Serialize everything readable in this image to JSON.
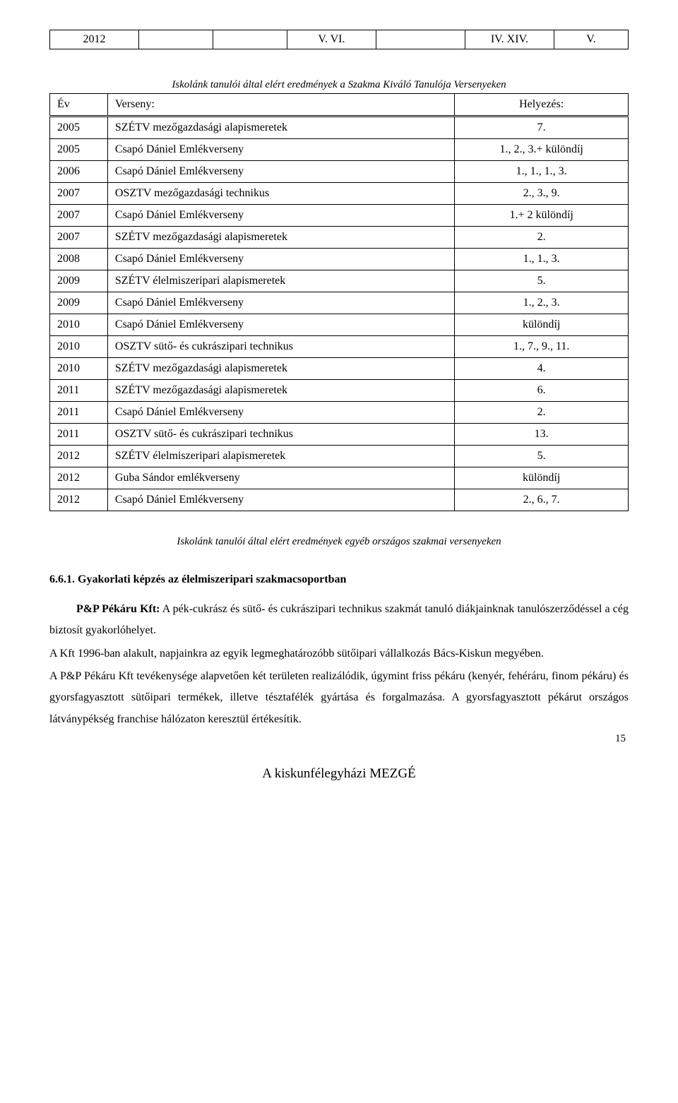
{
  "top_table": {
    "cells": [
      "2012",
      "",
      "",
      "V. VI.",
      "",
      "IV. XIV.",
      "V."
    ]
  },
  "caption1": "Iskolánk tanulói által elért eredmények a Szakma Kiváló Tanulója Versenyeken",
  "main_table": {
    "headers": [
      "Év",
      "Verseny:",
      "Helyezés:"
    ],
    "rows": [
      [
        "2005",
        "SZÉTV mezőgazdasági alapismeretek",
        "7."
      ],
      [
        "2005",
        "Csapó Dániel Emlékverseny",
        "1., 2., 3.+ különdíj"
      ],
      [
        "2006",
        "Csapó Dániel Emlékverseny",
        "1., 1., 1., 3."
      ],
      [
        "2007",
        "OSZTV mezőgazdasági technikus",
        "2., 3., 9."
      ],
      [
        "2007",
        "Csapó Dániel Emlékverseny",
        "1.+ 2 különdíj"
      ],
      [
        "2007",
        "SZÉTV mezőgazdasági alapismeretek",
        "2."
      ],
      [
        "2008",
        "Csapó Dániel Emlékverseny",
        "1., 1., 3."
      ],
      [
        "2009",
        "SZÉTV élelmiszeripari alapismeretek",
        "5."
      ],
      [
        "2009",
        "Csapó Dániel Emlékverseny",
        "1., 2., 3."
      ],
      [
        "2010",
        "Csapó Dániel Emlékverseny",
        "különdíj"
      ],
      [
        "2010",
        "OSZTV sütő- és cukrászipari technikus",
        "1., 7., 9., 11."
      ],
      [
        "2010",
        "SZÉTV mezőgazdasági alapismeretek",
        "4."
      ],
      [
        "2011",
        "SZÉTV mezőgazdasági alapismeretek",
        "6."
      ],
      [
        "2011",
        "Csapó Dániel Emlékverseny",
        "2."
      ],
      [
        "2011",
        "OSZTV sütő- és cukrászipari technikus",
        "13."
      ],
      [
        "2012",
        "SZÉTV élelmiszeripari alapismeretek",
        "5."
      ],
      [
        "2012",
        "Guba Sándor emlékverseny",
        "különdíj"
      ],
      [
        "2012",
        "Csapó Dániel Emlékverseny",
        "2., 6., 7."
      ]
    ]
  },
  "caption2": "Iskolánk tanulói által elért eredmények egyéb országos szakmai versenyeken",
  "section_heading": "6.6.1. Gyakorlati képzés az élelmiszeripari szakmacsoportban",
  "para1a": "P&P Pékáru Kft:",
  "para1b": " A pék-cukrász és sütő- és cukrászipari technikus szakmát tanuló diákjainknak tanulószerződéssel a cég biztosít gyakorlóhelyet.",
  "para2": "A Kft 1996-ban alakult, napjainkra az egyik legmeghatározóbb sütőipari vállalkozás Bács-Kiskun megyében.",
  "para3": "A P&P Pékáru Kft tevékenysége alapvetően két területen realizálódik, úgymint friss pékáru (kenyér, fehéráru, finom pékáru) és gyorsfagyasztott sütőipari termékek, illetve tésztafélék gyártása és forgalmazása. A gyorsfagyasztott pékárut országos látványpékség franchise hálózaton keresztül értékesítik.",
  "footer_title": "A kiskunfélegyházi MEZGÉ",
  "page_number": "15"
}
